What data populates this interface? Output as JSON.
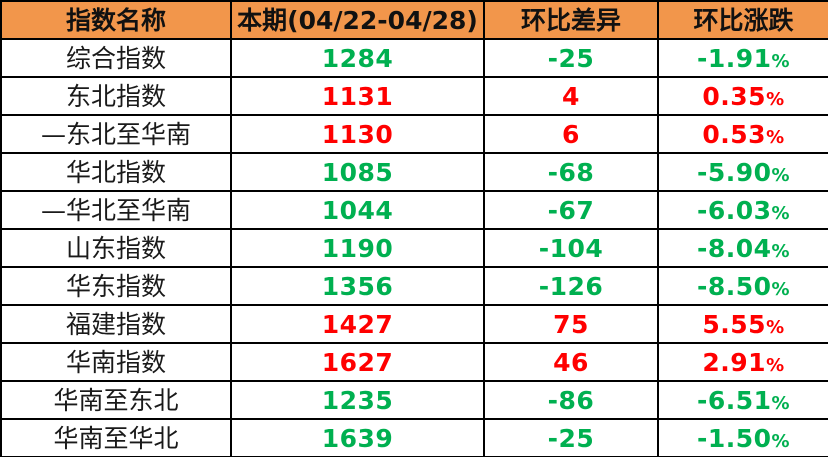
{
  "palette": {
    "header_bg": "#F2964B",
    "border": "#000000",
    "up": "#FF0000",
    "down": "#00B050",
    "header_text": "#111111",
    "name_text": "#1a1a1a",
    "row_bg": "#FFFFFF"
  },
  "chart_data": {
    "type": "table",
    "title": "",
    "columns": [
      "指数名称",
      "本期(04/22-04/28)",
      "环比差异",
      "环比涨跌"
    ],
    "rows": [
      {
        "name": "综合指数",
        "current": "1284",
        "diff": "-25",
        "pct": "-1.91%",
        "trend": "down"
      },
      {
        "name": "东北指数",
        "current": "1131",
        "diff": "4",
        "pct": "0.35%",
        "trend": "up"
      },
      {
        "name": "—东北至华南",
        "current": "1130",
        "diff": "6",
        "pct": "0.53%",
        "trend": "up"
      },
      {
        "name": "华北指数",
        "current": "1085",
        "diff": "-68",
        "pct": "-5.90%",
        "trend": "down"
      },
      {
        "name": "—华北至华南",
        "current": "1044",
        "diff": "-67",
        "pct": "-6.03%",
        "trend": "down"
      },
      {
        "name": "山东指数",
        "current": "1190",
        "diff": "-104",
        "pct": "-8.04%",
        "trend": "down"
      },
      {
        "name": "华东指数",
        "current": "1356",
        "diff": "-126",
        "pct": "-8.50%",
        "trend": "down"
      },
      {
        "name": "福建指数",
        "current": "1427",
        "diff": "75",
        "pct": "5.55%",
        "trend": "up"
      },
      {
        "name": "华南指数",
        "current": "1627",
        "diff": "46",
        "pct": "2.91%",
        "trend": "up"
      },
      {
        "name": "华南至东北",
        "current": "1235",
        "diff": "-86",
        "pct": "-6.51%",
        "trend": "down"
      },
      {
        "name": "华南至华北",
        "current": "1639",
        "diff": "-25",
        "pct": "-1.50%",
        "trend": "down"
      }
    ]
  }
}
